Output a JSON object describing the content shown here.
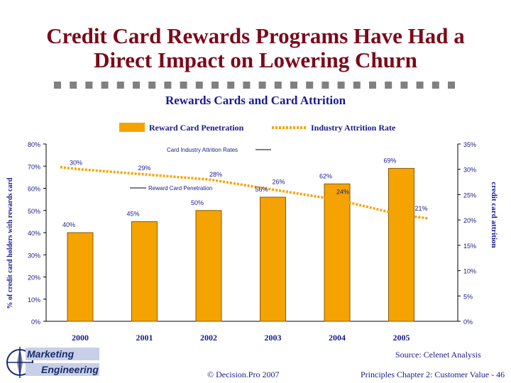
{
  "slide": {
    "title_line1": "Credit Card Rewards Programs Have Had a",
    "title_line2": "Direct Impact on Lowering Churn",
    "subtitle": "Rewards Cards and Card Attrition"
  },
  "legend": {
    "bar_label": "Reward Card Penetration",
    "line_label": "Industry Attrition Rate"
  },
  "colors": {
    "title": "#7a0a1a",
    "text": "#1a1a8c",
    "bar": "#f5a300",
    "bar_outline": "#8a5a00",
    "line": "#f5a300",
    "dashbar": "#808080"
  },
  "chart_data": {
    "type": "bar",
    "categories": [
      "2000",
      "2001",
      "2002",
      "2003",
      "2004",
      "2005"
    ],
    "series": [
      {
        "name": "Reward Card Penetration",
        "kind": "bar",
        "axis": "left",
        "values": [
          40,
          45,
          50,
          56,
          62,
          69
        ],
        "data_labels": [
          "40%",
          "45%",
          "50%",
          "56%",
          "62%",
          "69%"
        ]
      },
      {
        "name": "Industry Attrition Rate",
        "kind": "line",
        "axis": "right",
        "values": [
          30,
          29,
          28,
          26,
          24,
          21
        ],
        "data_labels": [
          "30%",
          "29%",
          "28%",
          "26%",
          "24%",
          "21%"
        ]
      }
    ],
    "ylabel": "% of credit card holders with rewards card",
    "ylabel_right": "credit card attrition",
    "ylim": [
      0,
      80
    ],
    "ylim_right": [
      0,
      35
    ],
    "yticks": [
      "0%",
      "10%",
      "20%",
      "30%",
      "40%",
      "50%",
      "60%",
      "70%",
      "80%"
    ],
    "yticks_right": [
      "0%",
      "5%",
      "10%",
      "15%",
      "20%",
      "25%",
      "30%",
      "35%"
    ],
    "annotations": [
      {
        "text": "Card Industry Attrition Rates",
        "points_to": "Industry Attrition Rate"
      },
      {
        "text": "Reward Card Penetration",
        "points_to": "Reward Card Penetration"
      }
    ],
    "grid": false
  },
  "footer": {
    "source": "Source: Celenet Analysis",
    "copyright": "© Decision.Pro 2007",
    "chapter": "Principles Chapter 2: Customer Value - 46",
    "logo_line1": "Marketing",
    "logo_line2": "Engineering"
  }
}
